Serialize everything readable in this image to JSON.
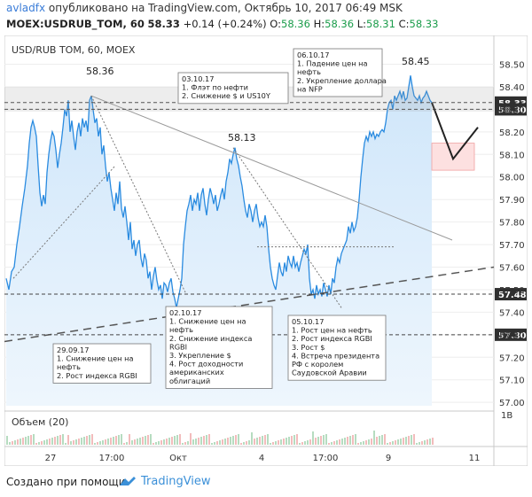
{
  "header": {
    "author": "avladfx",
    "published_text": "опубликовано на TradingView.com, Октябрь 10, 2017 06:49 MSK",
    "symbol": "MOEX:USDRUB_TOM, 60",
    "last": "58.33",
    "change": "+0.14 (+0.24%)",
    "o_label": "O:",
    "o_value": "58.36",
    "h_label": "H:",
    "h_value": "58.36",
    "l_label": "L:",
    "l_value": "58.31",
    "c_label": "C:",
    "c_value": "58.33"
  },
  "chart_data": {
    "type": "area",
    "title": "USD/RUB TOM, 60, MOEX",
    "price_axis": {
      "min": 57.0,
      "max": 58.6,
      "ticks": [
        "58.50",
        "58.40",
        "58.30",
        "58.20",
        "58.10",
        "58.00",
        "57.90",
        "57.80",
        "57.70",
        "57.60",
        "57.50",
        "57.40",
        "57.30",
        "57.20",
        "57.10",
        "57.00"
      ]
    },
    "price_markers": [
      {
        "label": "58.33",
        "value": 58.33,
        "style": "dark"
      },
      {
        "label": "58.30",
        "value": 58.3,
        "style": "dark"
      },
      {
        "label": "57.48",
        "value": 57.48,
        "style": "dark"
      },
      {
        "label": "57.30",
        "value": 57.3,
        "style": "dark"
      }
    ],
    "time_axis": [
      "27",
      "17:00",
      "Окт",
      "4",
      "17:00",
      "9",
      "11"
    ],
    "price_series": [
      [
        0,
        57.55
      ],
      [
        3,
        57.5
      ],
      [
        6,
        57.58
      ],
      [
        9,
        57.6
      ],
      [
        12,
        57.7
      ],
      [
        15,
        57.78
      ],
      [
        18,
        57.87
      ],
      [
        21,
        57.95
      ],
      [
        24,
        58.05
      ],
      [
        26,
        58.15
      ],
      [
        28,
        58.22
      ],
      [
        30,
        58.25
      ],
      [
        32,
        58.22
      ],
      [
        34,
        58.18
      ],
      [
        36,
        58.05
      ],
      [
        38,
        57.93
      ],
      [
        40,
        57.87
      ],
      [
        42,
        57.92
      ],
      [
        44,
        57.88
      ],
      [
        46,
        58.02
      ],
      [
        48,
        58.1
      ],
      [
        50,
        58.16
      ],
      [
        52,
        58.2
      ],
      [
        54,
        58.18
      ],
      [
        56,
        58.12
      ],
      [
        58,
        58.04
      ],
      [
        60,
        58.1
      ],
      [
        62,
        58.15
      ],
      [
        64,
        58.22
      ],
      [
        66,
        58.3
      ],
      [
        68,
        58.27
      ],
      [
        70,
        58.34
      ],
      [
        72,
        58.2
      ],
      [
        74,
        58.25
      ],
      [
        76,
        58.18
      ],
      [
        78,
        58.12
      ],
      [
        80,
        58.2
      ],
      [
        82,
        58.24
      ],
      [
        84,
        58.18
      ],
      [
        86,
        58.26
      ],
      [
        88,
        58.22
      ],
      [
        90,
        58.25
      ],
      [
        92,
        58.2
      ],
      [
        94,
        58.34
      ],
      [
        96,
        58.36
      ],
      [
        98,
        58.3
      ],
      [
        100,
        58.24
      ],
      [
        102,
        58.26
      ],
      [
        104,
        58.18
      ],
      [
        106,
        58.22
      ],
      [
        108,
        58.1
      ],
      [
        110,
        58.14
      ],
      [
        112,
        58.05
      ],
      [
        114,
        57.98
      ],
      [
        116,
        58.02
      ],
      [
        118,
        57.95
      ],
      [
        120,
        57.9
      ],
      [
        122,
        57.85
      ],
      [
        124,
        57.93
      ],
      [
        126,
        57.88
      ],
      [
        128,
        57.98
      ],
      [
        130,
        57.86
      ],
      [
        132,
        57.82
      ],
      [
        134,
        57.87
      ],
      [
        136,
        57.8
      ],
      [
        138,
        57.72
      ],
      [
        140,
        57.8
      ],
      [
        142,
        57.68
      ],
      [
        144,
        57.72
      ],
      [
        146,
        57.65
      ],
      [
        148,
        57.7
      ],
      [
        150,
        57.72
      ],
      [
        152,
        57.64
      ],
      [
        154,
        57.6
      ],
      [
        156,
        57.66
      ],
      [
        158,
        57.63
      ],
      [
        160,
        57.55
      ],
      [
        162,
        57.58
      ],
      [
        164,
        57.5
      ],
      [
        166,
        57.56
      ],
      [
        168,
        57.6
      ],
      [
        170,
        57.54
      ],
      [
        172,
        57.5
      ],
      [
        174,
        57.52
      ],
      [
        176,
        57.46
      ],
      [
        178,
        57.53
      ],
      [
        180,
        57.52
      ],
      [
        182,
        57.49
      ],
      [
        184,
        57.53
      ],
      [
        186,
        57.55
      ],
      [
        188,
        57.49
      ],
      [
        190,
        57.46
      ],
      [
        192,
        57.42
      ],
      [
        194,
        57.46
      ],
      [
        196,
        57.5
      ],
      [
        198,
        57.55
      ],
      [
        200,
        57.7
      ],
      [
        202,
        57.78
      ],
      [
        204,
        57.85
      ],
      [
        206,
        57.88
      ],
      [
        208,
        57.92
      ],
      [
        210,
        57.85
      ],
      [
        212,
        57.9
      ],
      [
        214,
        57.88
      ],
      [
        216,
        57.93
      ],
      [
        218,
        57.85
      ],
      [
        220,
        57.92
      ],
      [
        222,
        57.95
      ],
      [
        224,
        57.88
      ],
      [
        226,
        57.83
      ],
      [
        228,
        57.9
      ],
      [
        230,
        57.95
      ],
      [
        232,
        57.92
      ],
      [
        234,
        57.88
      ],
      [
        236,
        57.92
      ],
      [
        238,
        57.85
      ],
      [
        240,
        57.88
      ],
      [
        242,
        57.92
      ],
      [
        244,
        57.95
      ],
      [
        246,
        57.9
      ],
      [
        248,
        57.98
      ],
      [
        250,
        58.02
      ],
      [
        252,
        58.08
      ],
      [
        254,
        58.06
      ],
      [
        256,
        58.1
      ],
      [
        258,
        58.13
      ],
      [
        260,
        58.08
      ],
      [
        262,
        58.05
      ],
      [
        264,
        58.0
      ],
      [
        266,
        57.96
      ],
      [
        268,
        57.9
      ],
      [
        270,
        57.85
      ],
      [
        272,
        57.82
      ],
      [
        274,
        57.88
      ],
      [
        276,
        57.85
      ],
      [
        278,
        57.8
      ],
      [
        280,
        57.85
      ],
      [
        282,
        57.88
      ],
      [
        284,
        57.82
      ],
      [
        286,
        57.78
      ],
      [
        288,
        57.8
      ],
      [
        290,
        57.78
      ],
      [
        292,
        57.83
      ],
      [
        294,
        57.78
      ],
      [
        296,
        57.68
      ],
      [
        298,
        57.6
      ],
      [
        300,
        57.55
      ],
      [
        302,
        57.52
      ],
      [
        304,
        57.5
      ],
      [
        306,
        57.56
      ],
      [
        308,
        57.62
      ],
      [
        310,
        57.58
      ],
      [
        312,
        57.56
      ],
      [
        314,
        57.62
      ],
      [
        316,
        57.58
      ],
      [
        318,
        57.65
      ],
      [
        320,
        57.62
      ],
      [
        322,
        57.6
      ],
      [
        324,
        57.65
      ],
      [
        326,
        57.6
      ],
      [
        328,
        57.62
      ],
      [
        330,
        57.58
      ],
      [
        332,
        57.62
      ],
      [
        334,
        57.65
      ],
      [
        336,
        57.68
      ],
      [
        338,
        57.66
      ],
      [
        340,
        57.7
      ],
      [
        342,
        57.55
      ],
      [
        344,
        57.48
      ],
      [
        346,
        57.5
      ],
      [
        348,
        57.46
      ],
      [
        350,
        57.52
      ],
      [
        352,
        57.48
      ],
      [
        354,
        57.5
      ],
      [
        356,
        57.47
      ],
      [
        358,
        57.53
      ],
      [
        360,
        57.5
      ],
      [
        362,
        57.47
      ],
      [
        364,
        57.52
      ],
      [
        366,
        57.48
      ],
      [
        368,
        57.55
      ],
      [
        370,
        57.53
      ],
      [
        372,
        57.6
      ],
      [
        374,
        57.64
      ],
      [
        376,
        57.62
      ],
      [
        378,
        57.66
      ],
      [
        380,
        57.68
      ],
      [
        382,
        57.7
      ],
      [
        384,
        57.72
      ],
      [
        386,
        57.78
      ],
      [
        388,
        57.75
      ],
      [
        390,
        57.8
      ],
      [
        392,
        57.76
      ],
      [
        394,
        57.78
      ],
      [
        396,
        57.82
      ],
      [
        398,
        57.9
      ],
      [
        400,
        58.0
      ],
      [
        402,
        58.08
      ],
      [
        404,
        58.15
      ],
      [
        406,
        58.18
      ],
      [
        408,
        58.16
      ],
      [
        410,
        58.2
      ],
      [
        412,
        58.18
      ],
      [
        414,
        58.2
      ],
      [
        416,
        58.17
      ],
      [
        418,
        58.19
      ],
      [
        420,
        58.18
      ],
      [
        422,
        58.2
      ],
      [
        424,
        58.21
      ],
      [
        426,
        58.2
      ],
      [
        428,
        58.24
      ],
      [
        430,
        58.3
      ],
      [
        432,
        58.33
      ],
      [
        434,
        58.34
      ],
      [
        436,
        58.3
      ],
      [
        438,
        58.36
      ],
      [
        440,
        58.34
      ],
      [
        442,
        58.36
      ],
      [
        444,
        58.38
      ],
      [
        446,
        58.35
      ],
      [
        448,
        58.38
      ],
      [
        450,
        58.34
      ],
      [
        452,
        58.35
      ],
      [
        454,
        58.4
      ],
      [
        456,
        58.45
      ],
      [
        458,
        58.4
      ],
      [
        460,
        58.36
      ],
      [
        462,
        58.35
      ],
      [
        464,
        58.34
      ],
      [
        466,
        58.36
      ],
      [
        468,
        58.33
      ],
      [
        470,
        58.35
      ],
      [
        472,
        58.36
      ],
      [
        474,
        58.38
      ],
      [
        476,
        58.36
      ],
      [
        478,
        58.34
      ],
      [
        480,
        58.33
      ]
    ],
    "price_labels": [
      {
        "label": "58.36",
        "value": 58.36
      },
      {
        "label": "58.13",
        "value": 58.13
      },
      {
        "label": "58.45",
        "value": 58.45
      }
    ],
    "notes": [
      {
        "title": "03.10.17",
        "lines": [
          "1. Флэт по нефти",
          "2. Снижение $ и US10Y"
        ]
      },
      {
        "title": "06.10.17",
        "lines": [
          "1. Падение цен на",
          "нефть",
          "2. Укрепление доллара",
          "на NFP"
        ]
      },
      {
        "title": "02.10.17",
        "lines": [
          "1. Снижение цен на",
          "нефть",
          "2. Снижение индекса",
          "RGBI",
          "3. Укрепление $",
          "4. Рост доходности",
          "американских",
          "облигаций"
        ]
      },
      {
        "title": "05.10.17",
        "lines": [
          "1. Рост цен на нефть",
          "2. Рост индекса RGBI",
          "3. Рост $",
          "4. Встреча президента",
          "РФ с королем",
          "Саудовской Аравии"
        ]
      },
      {
        "title": "29.09.17",
        "lines": [
          "1. Снижение цен на",
          "нефть",
          "2. Рост индекса RGBI"
        ]
      }
    ],
    "volume": {
      "label": "Объем (20)",
      "axis_label": "1В"
    }
  },
  "footer": {
    "created_with": "Создано при помощи",
    "brand": "TradingView"
  }
}
